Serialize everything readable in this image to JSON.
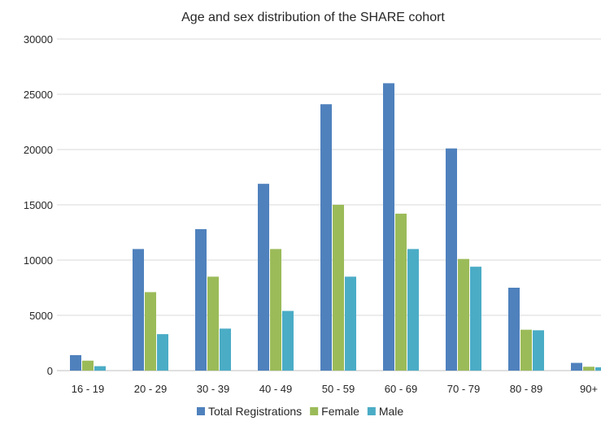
{
  "chart_data": {
    "type": "bar",
    "title": "Age and sex distribution of the SHARE cohort",
    "xlabel": "",
    "ylabel": "",
    "categories": [
      "16 - 19",
      "20 - 29",
      "30 - 39",
      "40 - 49",
      "50 - 59",
      "60 - 69",
      "70 - 79",
      "80 - 89",
      "90+"
    ],
    "series": [
      {
        "name": "Total Registrations",
        "color": "#4F81BD",
        "values": [
          1400,
          11000,
          12800,
          16900,
          24100,
          26000,
          20100,
          7500,
          700
        ]
      },
      {
        "name": "Female",
        "color": "#9BBB59",
        "values": [
          900,
          7100,
          8500,
          11000,
          15000,
          14200,
          10100,
          3700,
          350
        ]
      },
      {
        "name": "Male",
        "color": "#4BACC6",
        "values": [
          400,
          3300,
          3800,
          5400,
          8500,
          11000,
          9400,
          3650,
          300
        ]
      }
    ],
    "ylim": [
      0,
      30000
    ],
    "yticks": [
      "0",
      "5000",
      "10000",
      "15000",
      "20000",
      "25000",
      "30000"
    ],
    "grid": true,
    "legend_position": "bottom",
    "gridline_color": "#d9d9d9",
    "axis_color": "#bfbfbf"
  }
}
